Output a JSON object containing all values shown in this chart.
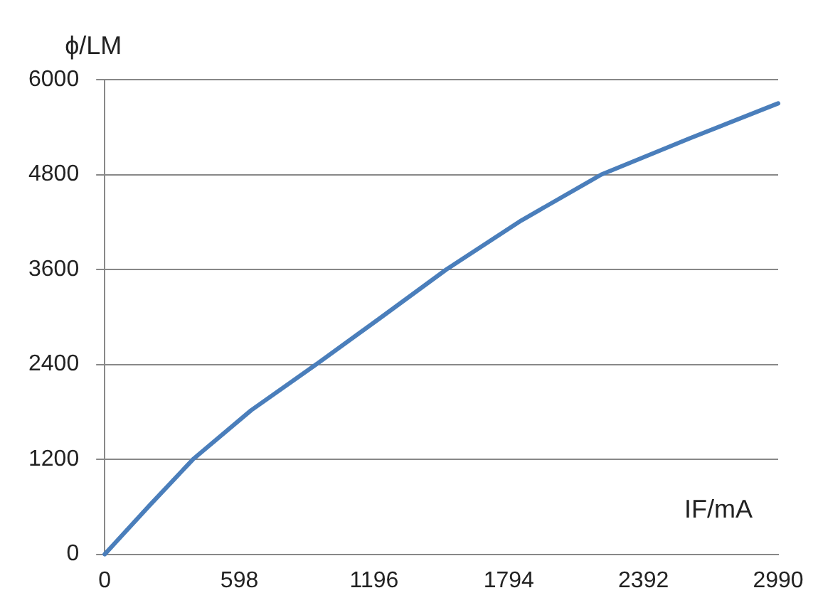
{
  "chart_data": {
    "type": "line",
    "xlabel": "IF/mA",
    "ylabel": "ϕ/LM",
    "x": [
      0,
      200,
      392,
      650,
      939,
      1220,
      1517,
      1850,
      2205,
      2600,
      2990
    ],
    "series": [
      {
        "color": "#4a7ebb",
        "values": [
          0,
          620,
          1200,
          1820,
          2400,
          2980,
          3600,
          4220,
          4800,
          5260,
          5700
        ]
      }
    ],
    "xlim": [
      0,
      2990
    ],
    "xticks": [
      0,
      598,
      1196,
      1794,
      2392,
      2990
    ],
    "ylim": [
      0,
      6000
    ],
    "yticks": [
      0,
      1200,
      2400,
      3600,
      4800,
      6000
    ],
    "grid": "y",
    "legend": false,
    "marker": "none",
    "line_style": "solid"
  }
}
